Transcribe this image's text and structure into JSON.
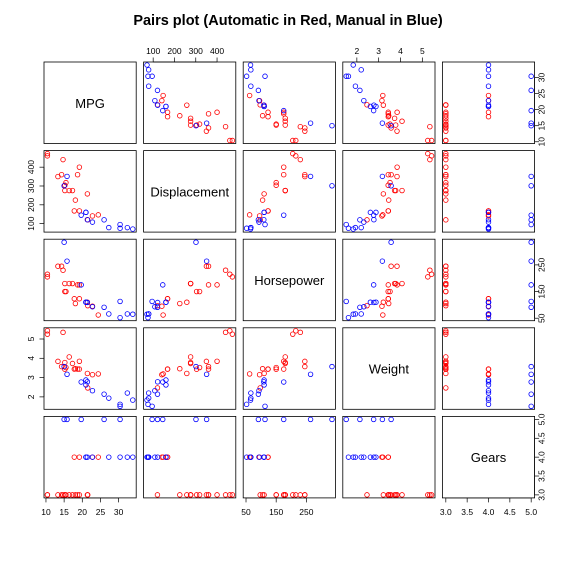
{
  "title": "Pairs plot (Automatic in Red, Manual in Blue)",
  "chart_data": {
    "type": "scatter",
    "title": "Pairs plot (Automatic in Red, Manual in Blue)",
    "variables": [
      "MPG",
      "Displacement",
      "Horsepower",
      "Weight",
      "Gears"
    ],
    "colors": {
      "automatic": "#ff0000",
      "manual": "#0000ff"
    },
    "ranges": {
      "MPG": [
        10.4,
        33.9
      ],
      "Displacement": [
        71.1,
        472
      ],
      "Horsepower": [
        52,
        335
      ],
      "Weight": [
        1.513,
        5.424
      ],
      "Gears": [
        3,
        5
      ]
    },
    "ticks": {
      "MPG": [
        "10",
        "15",
        "20",
        "25",
        "30"
      ],
      "Displacement": [
        "100",
        "200",
        "300",
        "400"
      ],
      "Horsepower": [
        "50",
        "150",
        "250"
      ],
      "Weight": [
        "2",
        "3",
        "4",
        "5"
      ],
      "Gears": [
        "3.0",
        "3.5",
        "4.0",
        "4.5",
        "5.0"
      ]
    },
    "tick_values": {
      "MPG": [
        10,
        15,
        20,
        25,
        30
      ],
      "Displacement": [
        100,
        200,
        300,
        400
      ],
      "Horsepower": [
        50,
        150,
        250
      ],
      "Weight": [
        2,
        3,
        4,
        5
      ],
      "Gears": [
        3,
        3.5,
        4,
        4.5,
        5
      ]
    },
    "series": [
      {
        "name": "Automatic",
        "color": "#ff0000",
        "MPG": [
          21.4,
          18.7,
          18.1,
          14.3,
          24.4,
          22.8,
          19.2,
          17.8,
          16.4,
          17.3,
          15.2,
          10.4,
          10.4,
          14.7,
          21.5,
          15.5,
          15.2,
          13.3,
          19.2
        ],
        "Displacement": [
          258,
          360,
          225,
          360,
          146.7,
          140.8,
          167.6,
          167.6,
          275.8,
          275.8,
          275.8,
          472,
          460,
          440,
          120.1,
          318,
          304,
          350,
          400
        ],
        "Horsepower": [
          110,
          175,
          105,
          245,
          62,
          95,
          123,
          123,
          180,
          180,
          180,
          205,
          215,
          230,
          97,
          150,
          150,
          245,
          175
        ],
        "Weight": [
          3.215,
          3.44,
          3.46,
          3.57,
          3.19,
          3.15,
          3.44,
          3.44,
          4.07,
          3.73,
          3.78,
          5.25,
          5.424,
          5.345,
          2.465,
          3.52,
          3.435,
          3.84,
          3.845
        ],
        "Gears": [
          3,
          3,
          3,
          3,
          4,
          4,
          4,
          4,
          3,
          3,
          3,
          3,
          3,
          3,
          3,
          3,
          3,
          3,
          3
        ]
      },
      {
        "name": "Manual",
        "color": "#0000ff",
        "MPG": [
          21,
          21,
          22.8,
          32.4,
          30.4,
          33.9,
          27.3,
          26,
          30.4,
          15.8,
          19.7,
          15,
          21.4
        ],
        "Displacement": [
          160,
          160,
          108,
          78.7,
          75.7,
          71.1,
          79,
          120.3,
          95.1,
          351,
          145,
          301,
          121
        ],
        "Horsepower": [
          110,
          110,
          93,
          66,
          52,
          65,
          66,
          91,
          113,
          264,
          175,
          335,
          109
        ],
        "Weight": [
          2.62,
          2.875,
          2.32,
          2.2,
          1.615,
          1.835,
          1.935,
          2.14,
          1.513,
          3.17,
          2.77,
          3.57,
          2.78
        ],
        "Gears": [
          4,
          4,
          4,
          4,
          4,
          4,
          4,
          5,
          5,
          5,
          5,
          5,
          4
        ]
      }
    ]
  }
}
